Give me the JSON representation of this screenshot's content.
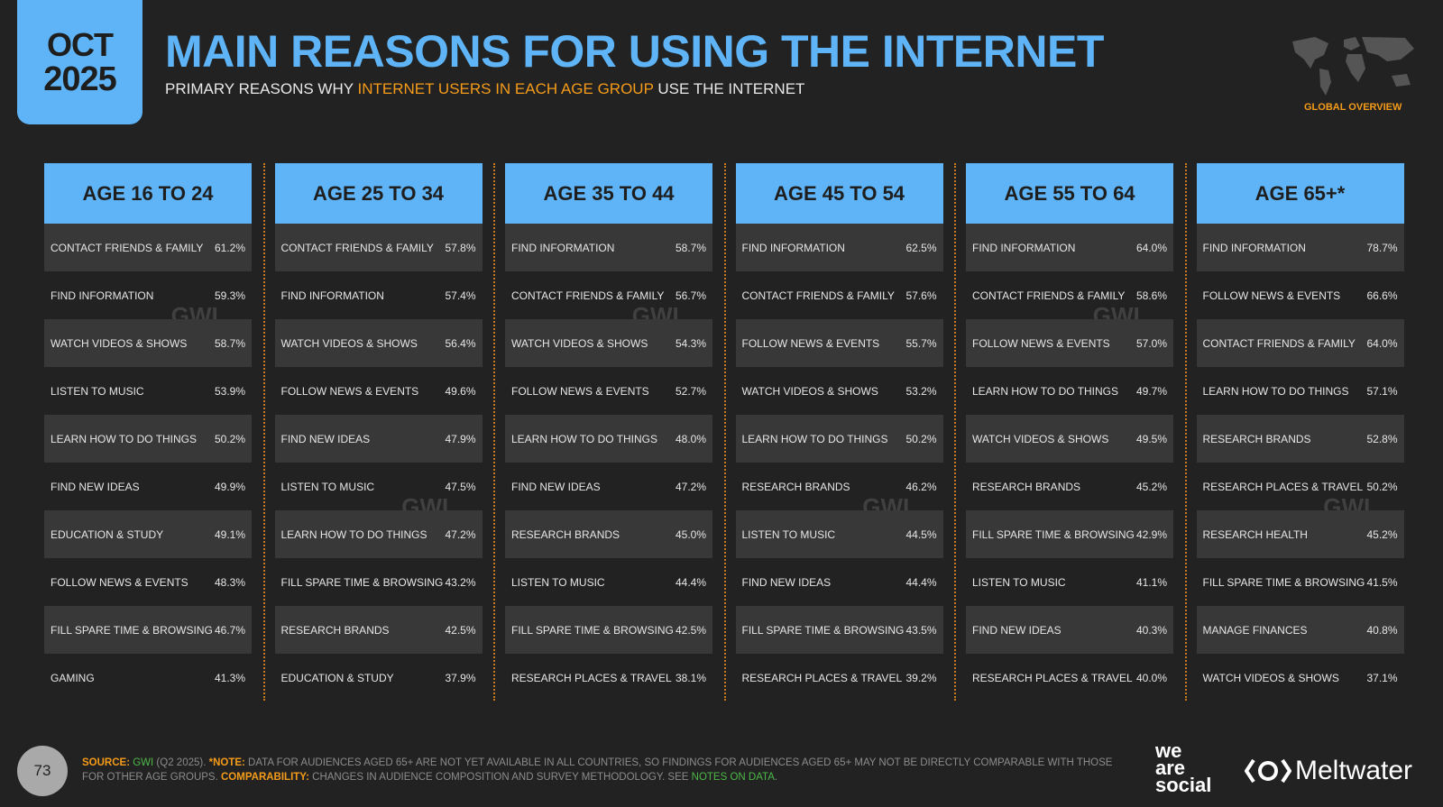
{
  "date": {
    "month": "OCT",
    "year": "2025"
  },
  "title": "MAIN REASONS FOR USING THE INTERNET",
  "subtitle": {
    "pre": "PRIMARY REASONS WHY ",
    "highlight": "INTERNET USERS IN EACH AGE GROUP",
    "post": " USE THE INTERNET"
  },
  "region_label": "GLOBAL OVERVIEW",
  "watermark": "GWI.",
  "colors": {
    "accent": "#5eb4f6",
    "highlight": "#f59b1a",
    "background": "#222222"
  },
  "columns": [
    {
      "header": "AGE 16 TO 24",
      "rows": [
        [
          "CONTACT FRIENDS & FAMILY",
          "61.2%"
        ],
        [
          "FIND INFORMATION",
          "59.3%"
        ],
        [
          "WATCH VIDEOS & SHOWS",
          "58.7%"
        ],
        [
          "LISTEN TO MUSIC",
          "53.9%"
        ],
        [
          "LEARN HOW TO DO THINGS",
          "50.2%"
        ],
        [
          "FIND NEW IDEAS",
          "49.9%"
        ],
        [
          "EDUCATION & STUDY",
          "49.1%"
        ],
        [
          "FOLLOW NEWS & EVENTS",
          "48.3%"
        ],
        [
          "FILL SPARE TIME & BROWSING",
          "46.7%"
        ],
        [
          "GAMING",
          "41.3%"
        ]
      ]
    },
    {
      "header": "AGE 25 TO 34",
      "rows": [
        [
          "CONTACT FRIENDS & FAMILY",
          "57.8%"
        ],
        [
          "FIND INFORMATION",
          "57.4%"
        ],
        [
          "WATCH VIDEOS & SHOWS",
          "56.4%"
        ],
        [
          "FOLLOW NEWS & EVENTS",
          "49.6%"
        ],
        [
          "FIND NEW IDEAS",
          "47.9%"
        ],
        [
          "LISTEN TO MUSIC",
          "47.5%"
        ],
        [
          "LEARN HOW TO DO THINGS",
          "47.2%"
        ],
        [
          "FILL SPARE TIME & BROWSING",
          "43.2%"
        ],
        [
          "RESEARCH BRANDS",
          "42.5%"
        ],
        [
          "EDUCATION & STUDY",
          "37.9%"
        ]
      ]
    },
    {
      "header": "AGE 35 TO 44",
      "rows": [
        [
          "FIND INFORMATION",
          "58.7%"
        ],
        [
          "CONTACT FRIENDS & FAMILY",
          "56.7%"
        ],
        [
          "WATCH VIDEOS & SHOWS",
          "54.3%"
        ],
        [
          "FOLLOW NEWS & EVENTS",
          "52.7%"
        ],
        [
          "LEARN HOW TO DO THINGS",
          "48.0%"
        ],
        [
          "FIND NEW IDEAS",
          "47.2%"
        ],
        [
          "RESEARCH BRANDS",
          "45.0%"
        ],
        [
          "LISTEN TO MUSIC",
          "44.4%"
        ],
        [
          "FILL SPARE TIME & BROWSING",
          "42.5%"
        ],
        [
          "RESEARCH PLACES & TRAVEL",
          "38.1%"
        ]
      ]
    },
    {
      "header": "AGE 45 TO 54",
      "rows": [
        [
          "FIND INFORMATION",
          "62.5%"
        ],
        [
          "CONTACT FRIENDS & FAMILY",
          "57.6%"
        ],
        [
          "FOLLOW NEWS & EVENTS",
          "55.7%"
        ],
        [
          "WATCH VIDEOS & SHOWS",
          "53.2%"
        ],
        [
          "LEARN HOW TO DO THINGS",
          "50.2%"
        ],
        [
          "RESEARCH BRANDS",
          "46.2%"
        ],
        [
          "LISTEN TO MUSIC",
          "44.5%"
        ],
        [
          "FIND NEW IDEAS",
          "44.4%"
        ],
        [
          "FILL SPARE TIME & BROWSING",
          "43.5%"
        ],
        [
          "RESEARCH PLACES & TRAVEL",
          "39.2%"
        ]
      ]
    },
    {
      "header": "AGE 55 TO 64",
      "rows": [
        [
          "FIND INFORMATION",
          "64.0%"
        ],
        [
          "CONTACT FRIENDS & FAMILY",
          "58.6%"
        ],
        [
          "FOLLOW NEWS & EVENTS",
          "57.0%"
        ],
        [
          "LEARN HOW TO DO THINGS",
          "49.7%"
        ],
        [
          "WATCH VIDEOS & SHOWS",
          "49.5%"
        ],
        [
          "RESEARCH BRANDS",
          "45.2%"
        ],
        [
          "FILL SPARE TIME & BROWSING",
          "42.9%"
        ],
        [
          "LISTEN TO MUSIC",
          "41.1%"
        ],
        [
          "FIND NEW IDEAS",
          "40.3%"
        ],
        [
          "RESEARCH PLACES & TRAVEL",
          "40.0%"
        ]
      ]
    },
    {
      "header": "AGE 65+*",
      "rows": [
        [
          "FIND INFORMATION",
          "78.7%"
        ],
        [
          "FOLLOW NEWS & EVENTS",
          "66.6%"
        ],
        [
          "CONTACT FRIENDS & FAMILY",
          "64.0%"
        ],
        [
          "LEARN HOW TO DO THINGS",
          "57.1%"
        ],
        [
          "RESEARCH BRANDS",
          "52.8%"
        ],
        [
          "RESEARCH PLACES & TRAVEL",
          "50.2%"
        ],
        [
          "RESEARCH HEALTH",
          "45.2%"
        ],
        [
          "FILL SPARE TIME & BROWSING",
          "41.5%"
        ],
        [
          "MANAGE FINANCES",
          "40.8%"
        ],
        [
          "WATCH VIDEOS & SHOWS",
          "37.1%"
        ]
      ]
    }
  ],
  "footer": {
    "page_number": "73",
    "source_label": "SOURCE:",
    "source": "GWI",
    "source_detail": " (Q2 2025). ",
    "note_label": "*NOTE:",
    "note": " DATA FOR AUDIENCES AGED 65+ ARE NOT YET AVAILABLE IN ALL COUNTRIES, SO FINDINGS FOR AUDIENCES AGED 65+ MAY NOT BE DIRECTLY COMPARABLE WITH THOSE FOR OTHER AGE GROUPS. ",
    "comparability_label": "COMPARABILITY:",
    "comparability": " CHANGES IN AUDIENCE COMPOSITION AND SURVEY METHODOLOGY. SEE ",
    "notes_link": "NOTES ON DATA",
    "end": "."
  },
  "logos": {
    "we_are_social": [
      "we",
      "are",
      "social"
    ],
    "meltwater": "Meltwater"
  }
}
